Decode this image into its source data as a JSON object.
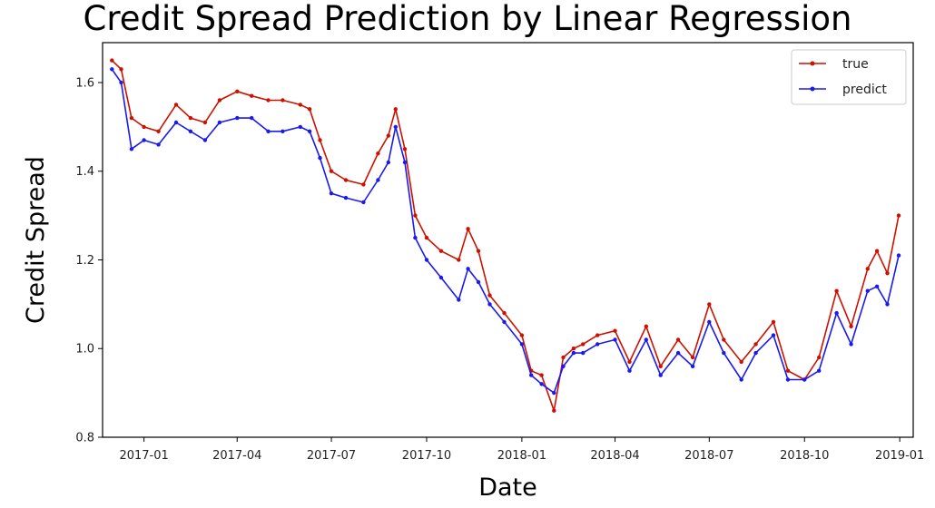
{
  "chart_data": {
    "type": "line",
    "title": "Credit Spread Prediction by Linear Regression",
    "xlabel": "Date",
    "ylabel": "Credit Spread",
    "x_ticks": [
      "2017-01",
      "2017-04",
      "2017-07",
      "2017-10",
      "2018-01",
      "2018-04",
      "2018-07",
      "2018-10",
      "2019-01"
    ],
    "y_ticks": [
      "0.8",
      "1.0",
      "1.2",
      "1.4",
      "1.6"
    ],
    "xlim": [
      "2016-11-22",
      "2019-01-14"
    ],
    "ylim": [
      0.8,
      1.69
    ],
    "grid": false,
    "legend_position": "top-right",
    "x": [
      "2016-12-01",
      "2016-12-10",
      "2016-12-20",
      "2017-01-01",
      "2017-01-15",
      "2017-02-01",
      "2017-02-15",
      "2017-03-01",
      "2017-03-15",
      "2017-04-01",
      "2017-04-15",
      "2017-05-01",
      "2017-05-15",
      "2017-06-01",
      "2017-06-10",
      "2017-06-20",
      "2017-07-01",
      "2017-07-15",
      "2017-08-01",
      "2017-08-15",
      "2017-08-25",
      "2017-09-01",
      "2017-09-10",
      "2017-09-20",
      "2017-10-01",
      "2017-10-15",
      "2017-11-01",
      "2017-11-10",
      "2017-11-20",
      "2017-12-01",
      "2017-12-15",
      "2018-01-01",
      "2018-01-10",
      "2018-01-20",
      "2018-02-01",
      "2018-02-10",
      "2018-02-20",
      "2018-03-01",
      "2018-03-15",
      "2018-04-01",
      "2018-04-15",
      "2018-05-01",
      "2018-05-15",
      "2018-06-01",
      "2018-06-15",
      "2018-07-01",
      "2018-07-15",
      "2018-08-01",
      "2018-08-15",
      "2018-09-01",
      "2018-09-15",
      "2018-10-01",
      "2018-10-15",
      "2018-11-01",
      "2018-11-15",
      "2018-12-01",
      "2018-12-10",
      "2018-12-20",
      "2018-12-31"
    ],
    "series": [
      {
        "name": "true",
        "color": "#cc1100",
        "values": [
          1.65,
          1.63,
          1.52,
          1.5,
          1.49,
          1.55,
          1.52,
          1.51,
          1.56,
          1.58,
          1.57,
          1.56,
          1.56,
          1.55,
          1.54,
          1.47,
          1.4,
          1.38,
          1.37,
          1.44,
          1.48,
          1.54,
          1.45,
          1.3,
          1.25,
          1.22,
          1.2,
          1.27,
          1.22,
          1.12,
          1.08,
          1.03,
          0.95,
          0.94,
          0.86,
          0.98,
          1.0,
          1.01,
          1.03,
          1.04,
          0.97,
          1.05,
          0.96,
          1.02,
          0.98,
          1.1,
          1.02,
          0.97,
          1.01,
          1.06,
          0.95,
          0.93,
          0.98,
          1.13,
          1.05,
          1.18,
          1.22,
          1.17,
          1.3
        ]
      },
      {
        "name": "predict",
        "color": "#1a1aee",
        "values": [
          1.63,
          1.6,
          1.45,
          1.47,
          1.46,
          1.51,
          1.49,
          1.47,
          1.51,
          1.52,
          1.52,
          1.49,
          1.49,
          1.5,
          1.49,
          1.43,
          1.35,
          1.34,
          1.33,
          1.38,
          1.42,
          1.5,
          1.42,
          1.25,
          1.2,
          1.16,
          1.11,
          1.18,
          1.15,
          1.1,
          1.06,
          1.01,
          0.94,
          0.92,
          0.9,
          0.96,
          0.99,
          0.99,
          1.01,
          1.02,
          0.95,
          1.02,
          0.94,
          0.99,
          0.96,
          1.06,
          0.99,
          0.93,
          0.99,
          1.03,
          0.93,
          0.93,
          0.95,
          1.08,
          1.01,
          1.13,
          1.14,
          1.1,
          1.21
        ]
      }
    ]
  }
}
